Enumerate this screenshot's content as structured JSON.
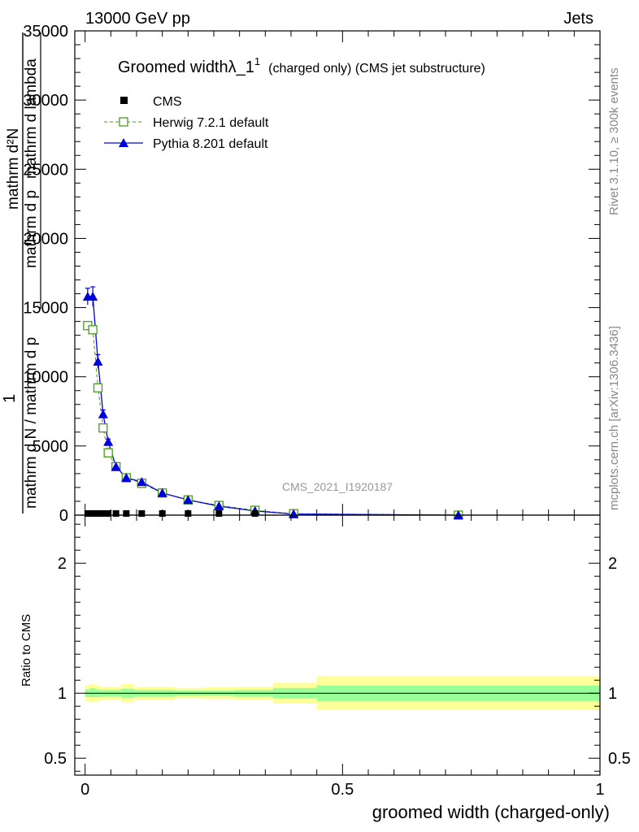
{
  "header": {
    "energy_label": "13000 GeV pp",
    "process_label": "Jets"
  },
  "side_labels": {
    "rivet": "Rivet 3.1.10, ≥ 300k events",
    "mcplots": "mcplots.cern.ch [arXiv:1306.3436]"
  },
  "watermark": "CMS_2021_I1920187",
  "legend": {
    "title_main": "Groomed widthλ_1",
    "title_sup": "1",
    "title_rest": "(charged only) (CMS jet substructure)",
    "entries": [
      {
        "label": "CMS"
      },
      {
        "label": "Herwig 7.2.1 default"
      },
      {
        "label": "Pythia 8.201 default"
      }
    ]
  },
  "axes": {
    "ylabel_numerator": "mathrm d²N",
    "ylabel_numerator_sub": "mathrm d p",
    "ylabel_numerator_tail": "mathrm d lambda",
    "ylabel_one": "1",
    "ylabel_denominator": "mathrm d N / mathrm d p",
    "ratio_ylabel": "Ratio to CMS",
    "xlabel": "groomed width (charged-only)"
  },
  "chart_data": [
    {
      "type": "line",
      "panel": "main",
      "xlabel": "groomed width (charged-only)",
      "xlim": [
        -0.02,
        1.0
      ],
      "ylim": [
        0,
        35000
      ],
      "yticks": [
        {
          "v": 0,
          "label": "0"
        },
        {
          "v": 5000,
          "label": "5000"
        },
        {
          "v": 10000,
          "label": "10000"
        },
        {
          "v": 15000,
          "label": "15000"
        },
        {
          "v": 20000,
          "label": "20000"
        },
        {
          "v": 25000,
          "label": "25000"
        },
        {
          "v": 30000,
          "label": "30000"
        },
        {
          "v": 35000,
          "label": "35000"
        }
      ],
      "series": [
        {
          "name": "CMS",
          "marker": "square-filled",
          "color": "#000000",
          "x": [
            0.005,
            0.015,
            0.025,
            0.035,
            0.045,
            0.06,
            0.08,
            0.11,
            0.15,
            0.2,
            0.26,
            0.33
          ],
          "y": [
            0,
            0,
            0,
            0,
            0,
            0,
            0,
            0,
            0,
            0,
            0,
            0
          ]
        },
        {
          "name": "Herwig 7.2.1 default",
          "marker": "square-open",
          "color": "#4a9a1e",
          "dashed": true,
          "x": [
            0.005,
            0.015,
            0.025,
            0.035,
            0.045,
            0.06,
            0.08,
            0.11,
            0.15,
            0.2,
            0.26,
            0.33,
            0.405,
            0.725
          ],
          "y": [
            13700,
            13400,
            9200,
            6300,
            4500,
            3500,
            2700,
            2300,
            1600,
            1100,
            700,
            350,
            100,
            0
          ]
        },
        {
          "name": "Pythia 8.201 default",
          "marker": "triangle-filled",
          "color": "#0000dd",
          "x": [
            0.005,
            0.015,
            0.025,
            0.035,
            0.045,
            0.06,
            0.08,
            0.11,
            0.15,
            0.2,
            0.26,
            0.33,
            0.405,
            0.725
          ],
          "y": [
            15800,
            15800,
            11100,
            7300,
            5300,
            3500,
            2700,
            2400,
            1600,
            1100,
            650,
            300,
            80,
            0
          ],
          "yerr": [
            600,
            700,
            500,
            300,
            200,
            150,
            100,
            100,
            80,
            60,
            40,
            30,
            20,
            0
          ]
        }
      ]
    },
    {
      "type": "area",
      "panel": "ratio",
      "xlabel": "groomed width (charged-only)",
      "ylabel": "Ratio to CMS",
      "xlim": [
        -0.02,
        1.0
      ],
      "ylim": [
        0.37,
        2.37
      ],
      "yticks": [
        {
          "v": 0.5,
          "label": "0.5"
        },
        {
          "v": 1,
          "label": "1"
        },
        {
          "v": 2,
          "label": "2"
        }
      ],
      "xticks": [
        {
          "v": 0,
          "label": "0"
        },
        {
          "v": 0.5,
          "label": "0.5"
        },
        {
          "v": 1,
          "label": "1"
        }
      ],
      "bins": [
        {
          "x0": 0.0,
          "x1": 0.01,
          "inner": [
            0.97,
            1.03
          ],
          "outer": [
            0.94,
            1.06
          ]
        },
        {
          "x0": 0.01,
          "x1": 0.02,
          "inner": [
            0.97,
            1.04
          ],
          "outer": [
            0.93,
            1.07
          ]
        },
        {
          "x0": 0.02,
          "x1": 0.03,
          "inner": [
            0.97,
            1.03
          ],
          "outer": [
            0.94,
            1.06
          ]
        },
        {
          "x0": 0.03,
          "x1": 0.04,
          "inner": [
            0.975,
            1.025
          ],
          "outer": [
            0.95,
            1.05
          ]
        },
        {
          "x0": 0.04,
          "x1": 0.05,
          "inner": [
            0.975,
            1.025
          ],
          "outer": [
            0.95,
            1.05
          ]
        },
        {
          "x0": 0.05,
          "x1": 0.07,
          "inner": [
            0.975,
            1.025
          ],
          "outer": [
            0.95,
            1.05
          ]
        },
        {
          "x0": 0.07,
          "x1": 0.095,
          "inner": [
            0.965,
            1.035
          ],
          "outer": [
            0.93,
            1.07
          ]
        },
        {
          "x0": 0.095,
          "x1": 0.13,
          "inner": [
            0.975,
            1.025
          ],
          "outer": [
            0.95,
            1.05
          ]
        },
        {
          "x0": 0.13,
          "x1": 0.175,
          "inner": [
            0.975,
            1.025
          ],
          "outer": [
            0.95,
            1.05
          ]
        },
        {
          "x0": 0.175,
          "x1": 0.23,
          "inner": [
            0.98,
            1.02
          ],
          "outer": [
            0.96,
            1.04
          ]
        },
        {
          "x0": 0.23,
          "x1": 0.29,
          "inner": [
            0.98,
            1.02
          ],
          "outer": [
            0.955,
            1.045
          ]
        },
        {
          "x0": 0.29,
          "x1": 0.365,
          "inner": [
            0.975,
            1.025
          ],
          "outer": [
            0.95,
            1.05
          ]
        },
        {
          "x0": 0.365,
          "x1": 0.45,
          "inner": [
            0.96,
            1.04
          ],
          "outer": [
            0.92,
            1.08
          ]
        },
        {
          "x0": 0.45,
          "x1": 1.0,
          "inner": [
            0.94,
            1.06
          ],
          "outer": [
            0.87,
            1.13
          ]
        }
      ]
    }
  ]
}
